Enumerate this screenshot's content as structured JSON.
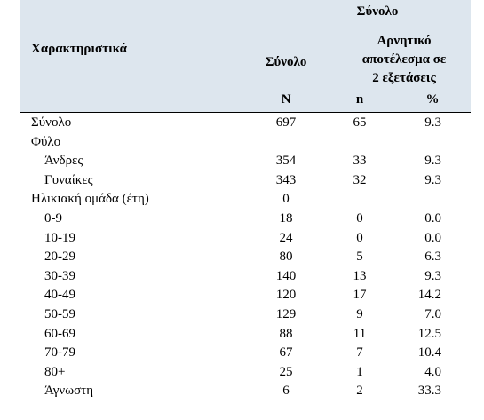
{
  "header": {
    "group_title": "Σύνολο",
    "characteristics": "Χαρακτηριστικά",
    "total": "Σύνολο",
    "negative": [
      "Αρνητικό",
      "αποτέλεσμα σε",
      "2 εξετάσεις"
    ],
    "N": "N",
    "n": "n",
    "pct": "%"
  },
  "rows": [
    {
      "label": "Σύνολο",
      "N": "697",
      "n": "65",
      "pct": "9.3"
    },
    {
      "label": "Φύλο"
    },
    {
      "label": "Άνδρες",
      "indent": true,
      "N": "354",
      "n": "33",
      "pct": "9.3"
    },
    {
      "label": "Γυναίκες",
      "indent": true,
      "N": "343",
      "n": "32",
      "pct": "9.3"
    },
    {
      "label": "Ηλικιακή ομάδα  (έτη)",
      "N": "0"
    },
    {
      "label": "0-9",
      "indent": true,
      "N": "18",
      "n": "0",
      "pct": "0.0"
    },
    {
      "label": "10-19",
      "indent": true,
      "N": "24",
      "n": "0",
      "pct": "0.0"
    },
    {
      "label": "20-29",
      "indent": true,
      "N": "80",
      "n": "5",
      "pct": "6.3"
    },
    {
      "label": "30-39",
      "indent": true,
      "N": "140",
      "n": "13",
      "pct": "9.3"
    },
    {
      "label": "40-49",
      "indent": true,
      "N": "120",
      "n": "17",
      "pct": "14.2"
    },
    {
      "label": "50-59",
      "indent": true,
      "N": "129",
      "n": "9",
      "pct": "7.0"
    },
    {
      "label": "60-69",
      "indent": true,
      "N": "88",
      "n": "11",
      "pct": "12.5"
    },
    {
      "label": "70-79",
      "indent": true,
      "N": "67",
      "n": "7",
      "pct": "10.4"
    },
    {
      "label": "80+",
      "indent": true,
      "N": "25",
      "n": "1",
      "pct": "4.0"
    },
    {
      "label": "Άγνωστη",
      "indent": true,
      "N": "6",
      "n": "2",
      "pct": "33.3"
    }
  ]
}
